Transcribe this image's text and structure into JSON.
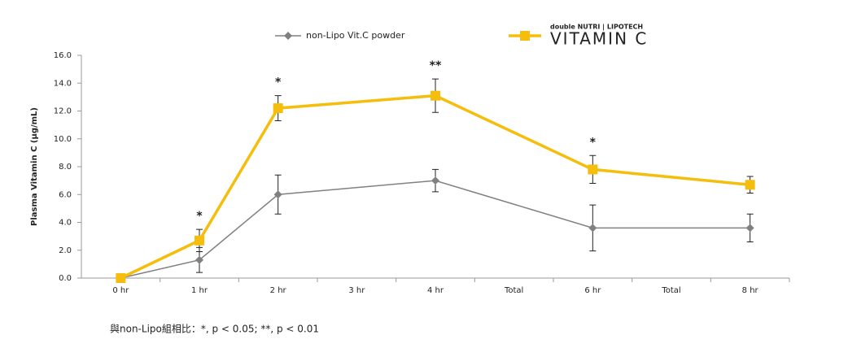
{
  "chart_data": {
    "type": "line",
    "y_label": "Plasma Vitamin C (μg/mL)",
    "categories": [
      "0 hr",
      "1 hr",
      "2 hr",
      "3 hr",
      "4 hr",
      "Total",
      "6 hr",
      "Total",
      "8 hr"
    ],
    "series": [
      {
        "name": "non-Lipo Vit.C powder",
        "color": "#808080",
        "marker": "diamond",
        "values": [
          0,
          1.3,
          6.0,
          null,
          7.0,
          null,
          3.6,
          null,
          3.6
        ],
        "errors": [
          0,
          0.9,
          1.4,
          null,
          0.8,
          null,
          1.65,
          null,
          1.0
        ]
      },
      {
        "name": "VITAMIN C",
        "brand": "double NUTRI | LIPOTECH",
        "color": "#f5bd0c",
        "marker": "square",
        "values": [
          0,
          2.7,
          12.2,
          null,
          13.1,
          null,
          7.8,
          null,
          6.7
        ],
        "errors": [
          0,
          0.8,
          0.9,
          null,
          1.2,
          null,
          1.0,
          null,
          0.6
        ]
      }
    ],
    "span_gaps": true,
    "annotations": [
      {
        "text": "*",
        "category": "1 hr"
      },
      {
        "text": "*",
        "category": "2 hr"
      },
      {
        "text": "**",
        "category": "4 hr"
      },
      {
        "text": "*",
        "category": "6 hr"
      }
    ],
    "ylim": [
      0,
      16
    ],
    "yticks": [
      {
        "value": 0,
        "label": "0.0"
      },
      {
        "value": 2,
        "label": "2.0"
      },
      {
        "value": 4,
        "label": "4.0"
      },
      {
        "value": 6,
        "label": "6.0"
      },
      {
        "value": 8,
        "label": "8.0"
      },
      {
        "value": 10,
        "label": "10.0"
      },
      {
        "value": 12,
        "label": "12.0"
      },
      {
        "value": 14,
        "label": "14.0"
      },
      {
        "value": 16,
        "label": "16.0"
      }
    ],
    "footnote": "與non-Lipo組相比：*, p < 0.05; **, p < 0.01"
  }
}
